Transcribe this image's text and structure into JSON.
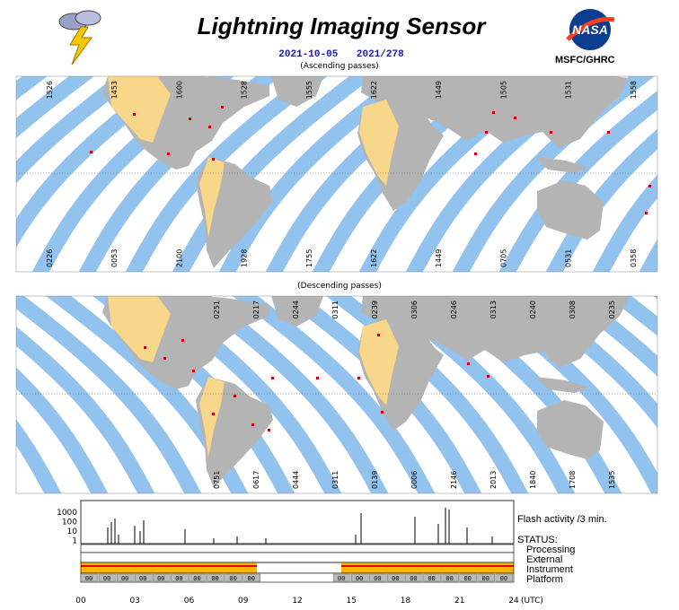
{
  "header": {
    "title": "Lightning Imaging Sensor",
    "date": "2021-10-05",
    "day_of_year": "2021/278",
    "org": "MSFC/GHRC",
    "logo_text": "NASA",
    "weather_icon": "lightning-cloud-icon"
  },
  "maps": {
    "ascending_label": "(Ascending passes)",
    "descending_label": "(Descending passes)",
    "ascending_top_times": [
      "1526",
      "1453",
      "1600",
      "1528",
      "1555",
      "1622",
      "1449",
      "1505",
      "1531",
      "1558"
    ],
    "ascending_bottom_times": [
      "0226",
      "0053",
      "2100",
      "1928",
      "1755",
      "1622",
      "1449",
      "0705",
      "0531",
      "0358"
    ],
    "descending_top_times": [
      "0251",
      "0217",
      "0244",
      "0311",
      "0239",
      "0306",
      "0246",
      "0313",
      "0240",
      "0308",
      "0235"
    ],
    "descending_bottom_times": [
      "0751",
      "0617",
      "0444",
      "0311",
      "0139",
      "0006",
      "2146",
      "2013",
      "1840",
      "1708",
      "1535"
    ],
    "colors": {
      "ocean": "#ffffff",
      "land": "#b4b4b4",
      "swath": "#92c2ee",
      "day_land": "#f8d68a",
      "flash": "#c80000"
    }
  },
  "timeline": {
    "flash_label": "Flash activity /3 min.",
    "y_ticks": [
      "1000",
      "100",
      "10",
      "1"
    ],
    "status_title": "STATUS:",
    "status_items": [
      "Processing",
      "External",
      "Instrument",
      "Platform"
    ],
    "x_ticks": [
      "00",
      "03",
      "06",
      "09",
      "12",
      "15",
      "18",
      "21",
      "24"
    ],
    "utc_label": "(UTC)",
    "bar_code": "00",
    "colors": {
      "orange": "#ffb400",
      "red": "#e60000",
      "yellow": "#ffff00",
      "gray": "#bbbbbb"
    }
  }
}
